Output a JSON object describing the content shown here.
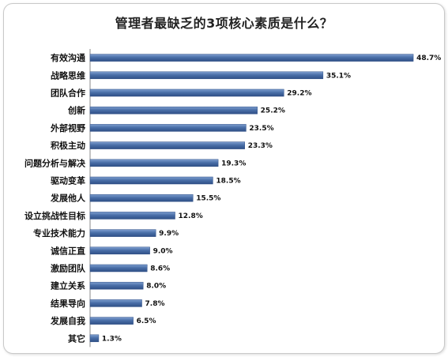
{
  "chart_data": {
    "type": "bar",
    "orientation": "horizontal",
    "title": "管理者最缺乏的3项核心素质是什么？",
    "categories": [
      "有效沟通",
      "战略思维",
      "团队合作",
      "创新",
      "外部视野",
      "积极主动",
      "问题分析与解决",
      "驱动变革",
      "发展他人",
      "设立挑战性目标",
      "专业技术能力",
      "诚信正直",
      "激励团队",
      "建立关系",
      "结果导向",
      "发展自我",
      "其它"
    ],
    "values": [
      48.7,
      35.1,
      29.2,
      25.2,
      23.5,
      23.3,
      19.3,
      18.5,
      15.5,
      12.8,
      9.9,
      9.0,
      8.6,
      8.0,
      7.8,
      6.5,
      1.3
    ],
    "value_labels": [
      "48.7%",
      "35.1%",
      "29.2%",
      "25.2%",
      "23.5%",
      "23.3%",
      "19.3%",
      "18.5%",
      "15.5%",
      "12.8%",
      "9.9%",
      "9.0%",
      "8.6%",
      "8.0%",
      "7.8%",
      "6.5%",
      "1.3%"
    ],
    "xlim": [
      0,
      50
    ],
    "grid": false,
    "bar_color": "#4a6fa8",
    "bar_color_dark": "#2f4f86"
  }
}
